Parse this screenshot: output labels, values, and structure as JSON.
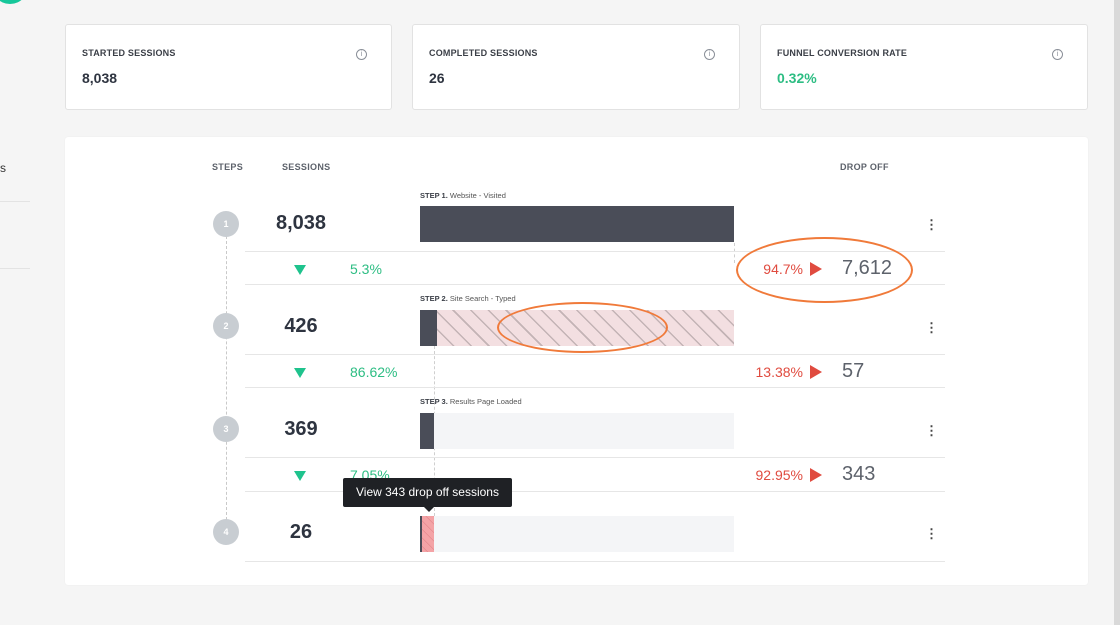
{
  "left_rail": {
    "truncated_text": "s"
  },
  "stats": {
    "started": {
      "label": "STARTED SESSIONS",
      "value": "8,038"
    },
    "completed": {
      "label": "COMPLETED SESSIONS",
      "value": "26"
    },
    "conversion": {
      "label": "FUNNEL CONVERSION RATE",
      "value": "0.32%"
    },
    "info_icon": "info-icon"
  },
  "columns": {
    "steps": "STEPS",
    "sessions": "SESSIONS",
    "drop_off": "DROP OFF"
  },
  "funnel": {
    "steps": [
      {
        "number": "1",
        "sessions": "8,038",
        "title_prefix": "STEP 1.",
        "title": "Website - Visited",
        "fraction_of_first": 1.0
      },
      {
        "number": "2",
        "sessions": "426",
        "title_prefix": "STEP 2.",
        "title": "Site Search - Typed",
        "fraction_of_first": 0.053
      },
      {
        "number": "3",
        "sessions": "369",
        "title_prefix": "STEP 3.",
        "title": "Results Page Loaded",
        "fraction_of_first": 0.0459
      },
      {
        "number": "4",
        "sessions": "26",
        "fraction_of_first": 0.0032
      }
    ],
    "transitions": [
      {
        "conversion": "5.3%",
        "drop_pct": "94.7%",
        "drop_count": "7,612"
      },
      {
        "conversion": "86.62%",
        "drop_pct": "13.38%",
        "drop_count": "57"
      },
      {
        "conversion": "7.05%",
        "drop_pct": "92.95%",
        "drop_count": "343"
      }
    ],
    "more_icon": "more-vertical-icon"
  },
  "tooltip": {
    "text": "View 343 drop off sessions"
  },
  "colors": {
    "bar": "#4a4d58",
    "conversion": "#2dbd83",
    "drop": "#e04b3f",
    "annotation": "#f07a3a"
  }
}
